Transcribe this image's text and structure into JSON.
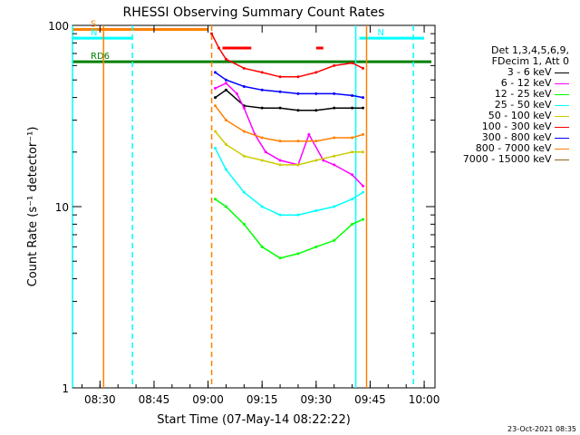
{
  "chart_data": {
    "type": "line",
    "title": "RHESSI Observing Summary Count Rates",
    "xlabel": "Start Time (07-May-14 08:22:22)",
    "ylabel": "Count Rate (s⁻¹ detector⁻¹)",
    "yscale": "log",
    "ylim": [
      1,
      100
    ],
    "xlim": [
      "08:22:22",
      "10:03"
    ],
    "x_ticks": [
      "08:30",
      "08:45",
      "09:00",
      "09:15",
      "09:30",
      "09:45",
      "10:00"
    ],
    "y_ticks": [
      "1",
      "10",
      "100"
    ],
    "legend_header": [
      "Det 1,3,4,5,6,9,",
      "FDecim 1, Att 0"
    ],
    "legend_placement": "right",
    "series": [
      {
        "name": "3 - 6 keV",
        "color": "#000000",
        "x": [
          "09:02",
          "09:05",
          "09:10",
          "09:15",
          "09:20",
          "09:25",
          "09:30",
          "09:35",
          "09:40",
          "09:43"
        ],
        "values": [
          40,
          44,
          36,
          35,
          35,
          34,
          34,
          35,
          35,
          35
        ]
      },
      {
        "name": "6 - 12 keV",
        "color": "#ff00ff",
        "x": [
          "09:02",
          "09:05",
          "09:08",
          "09:10",
          "09:13",
          "09:16",
          "09:20",
          "09:25",
          "09:28",
          "09:32",
          "09:35",
          "09:40",
          "09:43"
        ],
        "values": [
          45,
          48,
          42,
          35,
          25,
          20,
          18,
          17,
          25,
          18,
          17,
          15,
          13
        ]
      },
      {
        "name": "12 - 25 keV",
        "color": "#00ff00",
        "x": [
          "09:02",
          "09:05",
          "09:10",
          "09:15",
          "09:20",
          "09:25",
          "09:30",
          "09:35",
          "09:40",
          "09:43"
        ],
        "values": [
          11,
          10,
          8,
          6,
          5.2,
          5.5,
          6,
          6.5,
          8,
          8.5
        ]
      },
      {
        "name": "25 - 50 keV",
        "color": "#00ffff",
        "x": [
          "09:02",
          "09:05",
          "09:10",
          "09:15",
          "09:20",
          "09:25",
          "09:30",
          "09:35",
          "09:40",
          "09:43"
        ],
        "values": [
          21,
          16,
          12,
          10,
          9,
          9,
          9.5,
          10,
          11,
          12
        ]
      },
      {
        "name": "50 - 100 keV",
        "color": "#cccc00",
        "x": [
          "09:02",
          "09:05",
          "09:10",
          "09:15",
          "09:20",
          "09:25",
          "09:30",
          "09:35",
          "09:40",
          "09:43"
        ],
        "values": [
          26,
          22,
          19,
          18,
          17,
          17,
          18,
          19,
          20,
          20
        ]
      },
      {
        "name": "100 - 300 keV",
        "color": "#ff0000",
        "x": [
          "09:01",
          "09:03",
          "09:05",
          "09:10",
          "09:15",
          "09:20",
          "09:25",
          "09:30",
          "09:35",
          "09:40",
          "09:43"
        ],
        "values": [
          90,
          75,
          65,
          58,
          55,
          52,
          52,
          55,
          60,
          62,
          58
        ]
      },
      {
        "name": "300 - 800 keV",
        "color": "#0000ff",
        "x": [
          "09:02",
          "09:05",
          "09:10",
          "09:15",
          "09:20",
          "09:25",
          "09:30",
          "09:35",
          "09:40",
          "09:43"
        ],
        "values": [
          55,
          50,
          46,
          44,
          43,
          42,
          42,
          42,
          41,
          40
        ]
      },
      {
        "name": "800 - 7000 keV",
        "color": "#ff8000",
        "x": [
          "09:02",
          "09:05",
          "09:10",
          "09:15",
          "09:20",
          "09:25",
          "09:30",
          "09:35",
          "09:40",
          "09:43"
        ],
        "values": [
          36,
          30,
          26,
          24,
          23,
          23,
          23,
          24,
          24,
          25
        ]
      },
      {
        "name": "7000 - 15000 keV",
        "color": "#8b6914",
        "x": [],
        "values": []
      }
    ],
    "flag_bars": [
      {
        "label": "S",
        "color": "#ff8000",
        "y": 95,
        "x_start": "08:22:22",
        "x_end": "09:00"
      },
      {
        "label": "N",
        "color": "#00ffff",
        "y": 85,
        "x_start": "08:22:22",
        "x_end": "08:39"
      },
      {
        "label": "N",
        "color": "#00ffff",
        "y": 85,
        "x_start": "09:42",
        "x_end": "10:00"
      },
      {
        "label": "RD6",
        "color": "#008000",
        "y": 63,
        "x_start": "08:22:22",
        "x_end": "10:02"
      },
      {
        "label": "",
        "color": "#ff0000",
        "y": 75,
        "x_start": "09:04",
        "x_end": "09:12"
      },
      {
        "label": "",
        "color": "#ff0000",
        "y": 75,
        "x_start": "09:30",
        "x_end": "09:32"
      }
    ],
    "vertical_lines": [
      {
        "x": "08:22:22",
        "color": "#00ffff",
        "style": "solid"
      },
      {
        "x": "08:31",
        "color": "#ff8000",
        "style": "solid"
      },
      {
        "x": "08:39",
        "color": "#00ffff",
        "style": "dashed"
      },
      {
        "x": "09:01",
        "color": "#ff8000",
        "style": "dashed"
      },
      {
        "x": "09:41",
        "color": "#00ffff",
        "style": "solid"
      },
      {
        "x": "09:44",
        "color": "#ff8000",
        "style": "solid"
      },
      {
        "x": "09:57",
        "color": "#00ffff",
        "style": "dashed"
      }
    ],
    "grid": false
  },
  "legend_colors": {
    "header": "#000000"
  },
  "footer": {
    "timestamp": "23-Oct-2021 08:35"
  }
}
